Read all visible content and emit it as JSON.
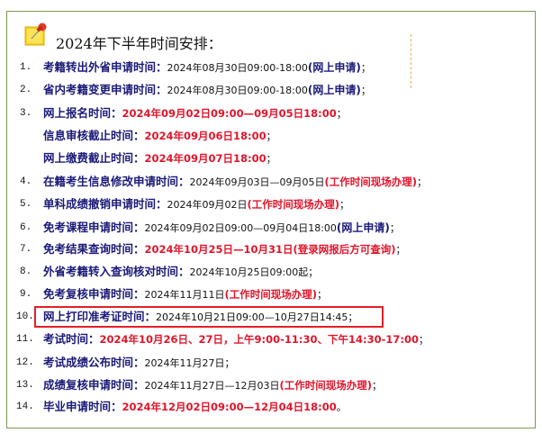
{
  "title": "2024年下半年时间安排：",
  "colors": {
    "label": "#1b1a78",
    "highlight": "#e1152b",
    "border": "#7e9a52",
    "box": "#e32026"
  },
  "icon": "pushpin-note-icon",
  "items": [
    {
      "num": "1.",
      "label": "考籍转出外省申请时间：",
      "segs": [
        {
          "s": "t",
          "v": "2024年08月30日09:00-18:00"
        },
        {
          "s": "b",
          "v": "(网上申请)"
        },
        {
          "s": "t",
          "v": "；"
        }
      ]
    },
    {
      "num": "2.",
      "label": "省内考籍变更申请时间：",
      "segs": [
        {
          "s": "t",
          "v": "2024年08月30日09:00-18:00"
        },
        {
          "s": "b",
          "v": "(网上申请)"
        },
        {
          "s": "t",
          "v": "；"
        }
      ]
    },
    {
      "num": "3.",
      "label": "网上报名时间：",
      "segs": [
        {
          "s": "r",
          "v": "2024年09月02日09:00—09月05日18:00"
        },
        {
          "s": "t",
          "v": "；"
        }
      ]
    },
    {
      "num": "",
      "label": "信息审核截止时间：",
      "segs": [
        {
          "s": "r",
          "v": "2024年09月06日18:00"
        },
        {
          "s": "t",
          "v": "；"
        }
      ]
    },
    {
      "num": "",
      "label": "网上缴费截止时间：",
      "segs": [
        {
          "s": "r",
          "v": "2024年09月07日18:00"
        },
        {
          "s": "t",
          "v": "；"
        }
      ]
    },
    {
      "num": "4.",
      "label": "在籍考生信息修改申请时间：",
      "segs": [
        {
          "s": "t",
          "v": "2024年09月03日—09月05日"
        },
        {
          "s": "r",
          "v": "(工作时间现场办理)"
        },
        {
          "s": "t",
          "v": "；"
        }
      ]
    },
    {
      "num": "5.",
      "label": "单科成绩撤销申请时间：",
      "segs": [
        {
          "s": "t",
          "v": "2024年09月02日"
        },
        {
          "s": "r",
          "v": "(工作时间现场办理)"
        },
        {
          "s": "t",
          "v": "；"
        }
      ]
    },
    {
      "num": "6.",
      "label": "免考课程申请时间：",
      "segs": [
        {
          "s": "t",
          "v": "2024年09月02日09:00—09月04日18:00"
        },
        {
          "s": "b",
          "v": "(网上申请)"
        },
        {
          "s": "t",
          "v": "；"
        }
      ]
    },
    {
      "num": "7.",
      "label": "免考结果查询时间：",
      "segs": [
        {
          "s": "r",
          "v": "2024年10月25日—10月31日(登录网报后方可查询)"
        },
        {
          "s": "t",
          "v": "；"
        }
      ]
    },
    {
      "num": "8.",
      "label": "外省考籍转入查询核对时间：",
      "segs": [
        {
          "s": "t",
          "v": "2024年10月25日09:00起；"
        }
      ]
    },
    {
      "num": "9.",
      "label": "免考复核申请时间：",
      "segs": [
        {
          "s": "t",
          "v": "2024年11月11日"
        },
        {
          "s": "r",
          "v": "(工作时间现场办理)"
        },
        {
          "s": "t",
          "v": "；"
        }
      ]
    },
    {
      "num": "10.",
      "label": "网上打印准考证时间：",
      "segs": [
        {
          "s": "t",
          "v": "2024年10月21日09:00—10月27日14:45；"
        }
      ]
    },
    {
      "num": "11.",
      "label": "考试时间：",
      "segs": [
        {
          "s": "r",
          "v": "2024年10月26日、27日，上午9:00-11:30、下午14:30-17:00"
        },
        {
          "s": "t",
          "v": "；"
        }
      ]
    },
    {
      "num": "12.",
      "label": "考试成绩公布时间：",
      "segs": [
        {
          "s": "t",
          "v": "2024年11月27日；"
        }
      ]
    },
    {
      "num": "13.",
      "label": "成绩复核申请时间：",
      "segs": [
        {
          "s": "t",
          "v": "2024年11月27日—12月03日"
        },
        {
          "s": "r",
          "v": "(工作时间现场办理)"
        },
        {
          "s": "t",
          "v": "；"
        }
      ]
    },
    {
      "num": "14.",
      "label": "毕业申请时间：",
      "segs": [
        {
          "s": "r",
          "v": "2024年12月02日09:00—12月04日18:00"
        },
        {
          "s": "t",
          "v": "。"
        }
      ]
    }
  ]
}
